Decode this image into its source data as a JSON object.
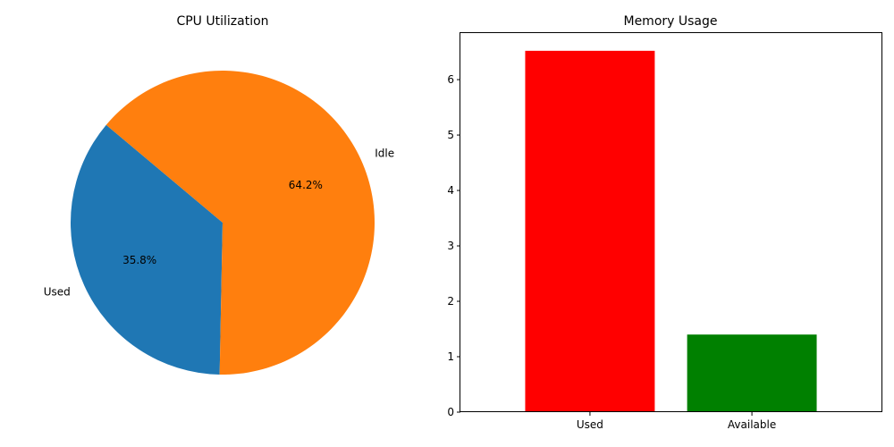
{
  "chart_data": [
    {
      "type": "pie",
      "title": "CPU Utilization",
      "labels": [
        "Used",
        "Idle"
      ],
      "values": [
        35.8,
        64.2
      ],
      "pct_labels": [
        "35.8%",
        "64.2%"
      ],
      "colors": [
        "#1f77b4",
        "#ff7f0e"
      ],
      "start_angle_deg": 140
    },
    {
      "type": "bar",
      "title": "Memory Usage",
      "categories": [
        "Used",
        "Available"
      ],
      "values": [
        6.52,
        1.4
      ],
      "colors": [
        "#ff0000",
        "#008000"
      ],
      "xlabel": "",
      "ylabel": "",
      "ylim": [
        0,
        6.84
      ],
      "yticks": [
        0,
        1,
        2,
        3,
        4,
        5,
        6
      ],
      "grid": false
    }
  ]
}
